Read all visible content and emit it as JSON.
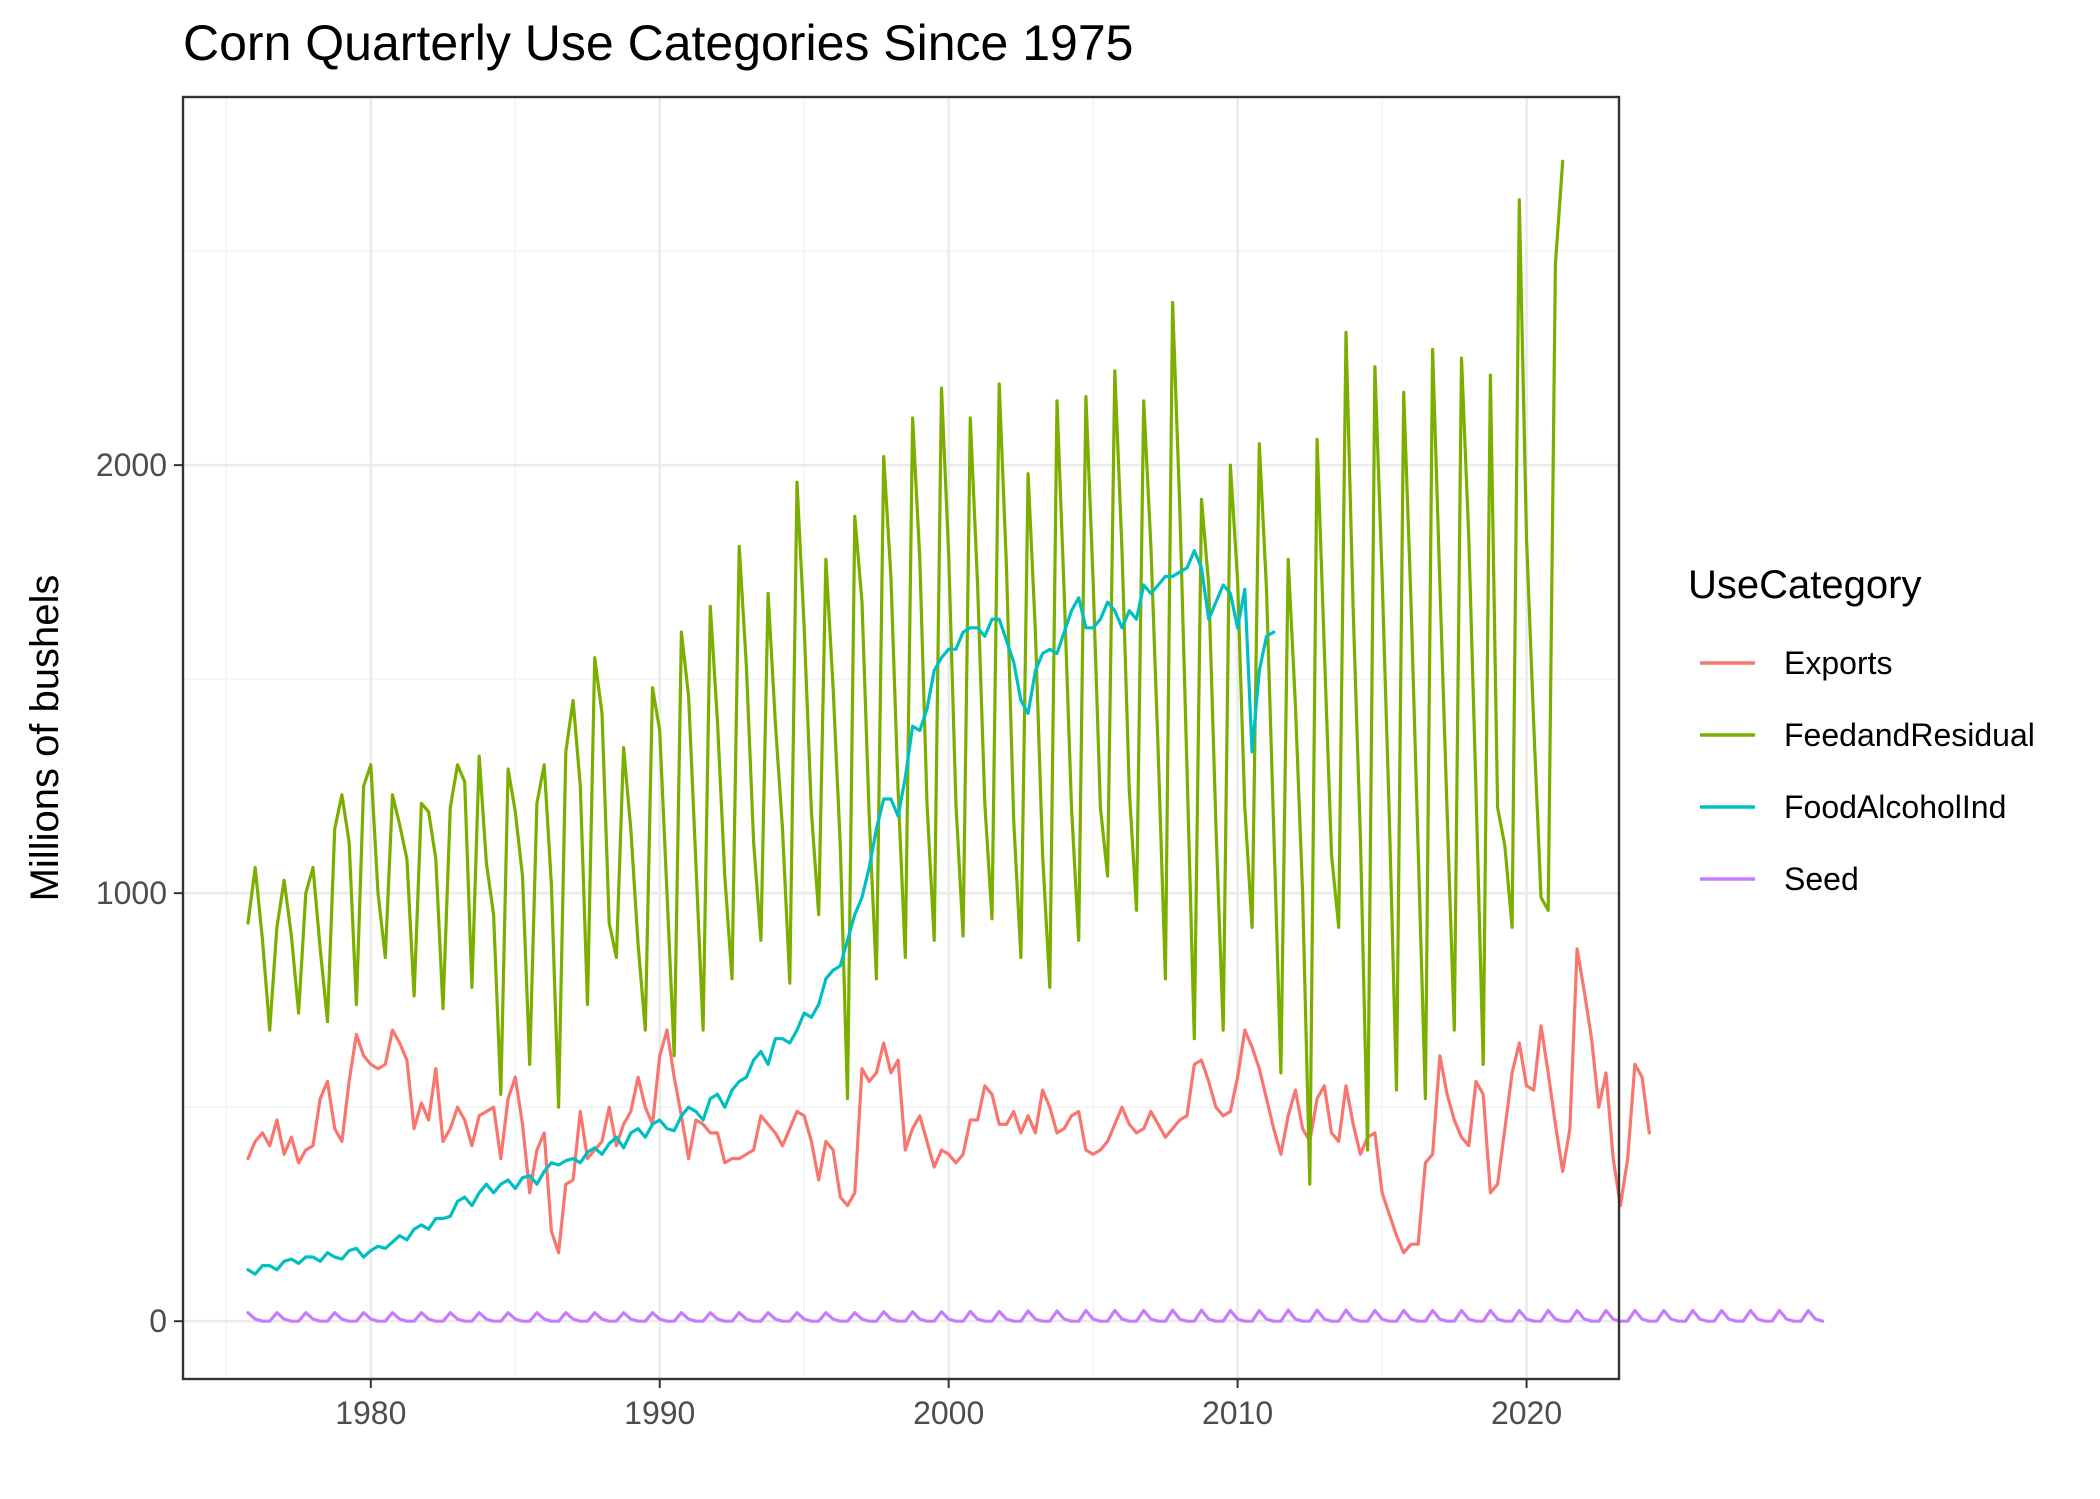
{
  "chart_data": {
    "type": "line",
    "title": "Corn Quarterly Use Categories Since 1975",
    "xlabel": "",
    "ylabel": "Millions of bushels",
    "xlim": [
      1973.5,
      2023.2
    ],
    "ylim": [
      -135,
      2860
    ],
    "x_ticks": [
      1980,
      1990,
      2000,
      2010,
      2020
    ],
    "y_ticks": [
      0,
      1000,
      2000
    ],
    "x_minor_ticks": [
      1975,
      1985,
      1995,
      2005,
      2015
    ],
    "y_minor_ticks": [
      500,
      1500,
      2500
    ],
    "grid": true,
    "legend": {
      "title": "UseCategory",
      "position": "right"
    },
    "x_start": 1975.75,
    "x_step": 0.25,
    "series": [
      {
        "name": "Exports",
        "color": "#F8766D",
        "values": [
          380,
          420,
          440,
          410,
          470,
          390,
          430,
          370,
          400,
          410,
          520,
          560,
          450,
          420,
          560,
          670,
          620,
          600,
          590,
          600,
          680,
          650,
          610,
          450,
          510,
          470,
          590,
          420,
          450,
          500,
          470,
          410,
          480,
          490,
          500,
          380,
          520,
          570,
          460,
          300,
          400,
          440,
          210,
          160,
          320,
          330,
          490,
          380,
          400,
          420,
          500,
          410,
          460,
          490,
          570,
          500,
          460,
          620,
          680,
          570,
          480,
          380,
          470,
          460,
          440,
          440,
          370,
          380,
          380,
          390,
          400,
          480,
          460,
          440,
          410,
          450,
          490,
          480,
          420,
          330,
          420,
          400,
          290,
          270,
          300,
          590,
          560,
          580,
          650,
          580,
          610,
          400,
          450,
          480,
          420,
          360,
          400,
          390,
          370,
          390,
          470,
          470,
          550,
          530,
          460,
          460,
          490,
          440,
          480,
          440,
          540,
          500,
          440,
          450,
          480,
          490,
          400,
          390,
          400,
          420,
          460,
          500,
          460,
          440,
          450,
          490,
          460,
          430,
          450,
          470,
          480,
          600,
          610,
          560,
          500,
          480,
          490,
          570,
          680,
          640,
          590,
          520,
          450,
          390,
          480,
          540,
          450,
          420,
          520,
          550,
          440,
          420,
          550,
          460,
          390,
          430,
          440,
          300,
          250,
          200,
          160,
          180,
          180,
          370,
          390,
          620,
          530,
          470,
          430,
          410,
          560,
          530,
          300,
          320,
          450,
          580,
          650,
          550,
          540,
          690,
          580,
          460,
          350,
          450,
          870,
          770,
          660,
          500,
          580,
          380,
          270,
          380,
          600,
          570,
          440
        ]
      },
      {
        "name": "FeedandResidual",
        "color": "#7CAE00",
        "values": [
          930,
          1060,
          890,
          680,
          920,
          1030,
          900,
          720,
          1000,
          1060,
          870,
          700,
          1150,
          1230,
          1120,
          740,
          1250,
          1300,
          1000,
          850,
          1230,
          1160,
          1080,
          760,
          1210,
          1190,
          1080,
          730,
          1200,
          1300,
          1260,
          780,
          1320,
          1070,
          950,
          530,
          1290,
          1190,
          1040,
          600,
          1210,
          1300,
          1020,
          500,
          1330,
          1450,
          1250,
          740,
          1550,
          1420,
          930,
          850,
          1340,
          1150,
          880,
          680,
          1480,
          1380,
          1000,
          620,
          1610,
          1460,
          1070,
          680,
          1670,
          1400,
          1040,
          800,
          1810,
          1530,
          1120,
          890,
          1700,
          1400,
          1150,
          790,
          1960,
          1620,
          1190,
          950,
          1780,
          1480,
          1110,
          520,
          1880,
          1680,
          1180,
          800,
          2020,
          1740,
          1240,
          850,
          2110,
          1780,
          1210,
          890,
          2180,
          1790,
          1210,
          900,
          2110,
          1720,
          1210,
          940,
          2190,
          1760,
          1170,
          850,
          1980,
          1610,
          1090,
          780,
          2150,
          1700,
          1200,
          890,
          2160,
          1730,
          1200,
          1040,
          2220,
          1800,
          1240,
          960,
          2150,
          1810,
          1330,
          800,
          2380,
          1900,
          1290,
          660,
          1920,
          1720,
          1160,
          680,
          2000,
          1730,
          1200,
          920,
          2050,
          1710,
          1150,
          580,
          1780,
          1440,
          1000,
          320,
          2060,
          1570,
          1090,
          920,
          2310,
          1660,
          1130,
          400,
          2230,
          1740,
          1180,
          540,
          2170,
          1680,
          1100,
          520,
          2270,
          1720,
          1190,
          680,
          2250,
          1830,
          1240,
          600,
          2210,
          1200,
          1110,
          920,
          2620,
          1830,
          1390,
          990,
          960,
          2470,
          2710
        ]
      },
      {
        "name": "FoodAlcoholInd",
        "color": "#00BFC4",
        "values": [
          120,
          110,
          130,
          130,
          120,
          140,
          145,
          135,
          150,
          150,
          140,
          160,
          150,
          145,
          165,
          170,
          150,
          165,
          175,
          170,
          185,
          200,
          190,
          215,
          225,
          215,
          240,
          240,
          245,
          280,
          290,
          270,
          300,
          320,
          300,
          320,
          330,
          310,
          335,
          340,
          320,
          350,
          370,
          365,
          375,
          380,
          370,
          395,
          405,
          390,
          415,
          430,
          405,
          440,
          450,
          430,
          460,
          470,
          450,
          445,
          480,
          500,
          490,
          470,
          520,
          530,
          500,
          540,
          560,
          570,
          610,
          630,
          600,
          660,
          660,
          650,
          680,
          720,
          710,
          740,
          800,
          820,
          830,
          890,
          950,
          990,
          1060,
          1150,
          1220,
          1220,
          1180,
          1270,
          1390,
          1380,
          1430,
          1520,
          1550,
          1570,
          1570,
          1610,
          1620,
          1620,
          1600,
          1640,
          1640,
          1590,
          1540,
          1450,
          1420,
          1520,
          1560,
          1570,
          1560,
          1610,
          1660,
          1690,
          1620,
          1620,
          1640,
          1680,
          1660,
          1620,
          1660,
          1640,
          1720,
          1700,
          1720,
          1740,
          1740,
          1750,
          1760,
          1800,
          1760,
          1640,
          1680,
          1720,
          1700,
          1620,
          1710,
          1330,
          1520,
          1600,
          1610
        ]
      },
      {
        "name": "Seed",
        "color": "#C77CFF",
        "values": [
          20,
          5,
          0,
          0,
          20,
          5,
          0,
          0,
          20,
          5,
          0,
          0,
          20,
          5,
          0,
          0,
          20,
          5,
          0,
          0,
          20,
          5,
          0,
          0,
          20,
          5,
          0,
          0,
          20,
          5,
          0,
          0,
          20,
          5,
          0,
          0,
          20,
          5,
          0,
          0,
          20,
          5,
          0,
          0,
          20,
          5,
          0,
          0,
          20,
          5,
          0,
          0,
          20,
          5,
          0,
          0,
          20,
          5,
          0,
          0,
          20,
          5,
          0,
          0,
          20,
          5,
          0,
          0,
          20,
          5,
          0,
          0,
          20,
          5,
          0,
          0,
          20,
          5,
          0,
          0,
          20,
          5,
          0,
          0,
          20,
          5,
          0,
          0,
          22,
          5,
          0,
          0,
          22,
          5,
          0,
          0,
          22,
          5,
          0,
          0,
          23,
          5,
          0,
          0,
          23,
          5,
          0,
          0,
          24,
          5,
          0,
          0,
          24,
          5,
          0,
          0,
          25,
          5,
          0,
          0,
          25,
          5,
          0,
          0,
          25,
          5,
          0,
          0,
          26,
          5,
          0,
          0,
          26,
          5,
          0,
          0,
          25,
          5,
          0,
          0,
          25,
          5,
          0,
          0,
          26,
          5,
          0,
          0,
          26,
          5,
          0,
          0,
          26,
          5,
          0,
          0,
          25,
          5,
          0,
          0,
          25,
          5,
          0,
          0,
          25,
          5,
          0,
          0,
          25,
          5,
          0,
          0,
          25,
          5,
          0,
          0,
          25,
          5,
          0,
          0,
          25,
          5,
          0,
          0,
          25,
          5,
          0,
          0,
          25,
          5,
          0,
          0,
          25,
          5,
          0,
          0,
          25,
          5,
          0,
          0,
          25,
          5,
          0,
          0,
          25,
          5,
          0,
          0,
          25,
          5,
          0,
          0,
          25,
          5,
          0,
          0,
          25,
          5,
          0
        ]
      }
    ]
  }
}
